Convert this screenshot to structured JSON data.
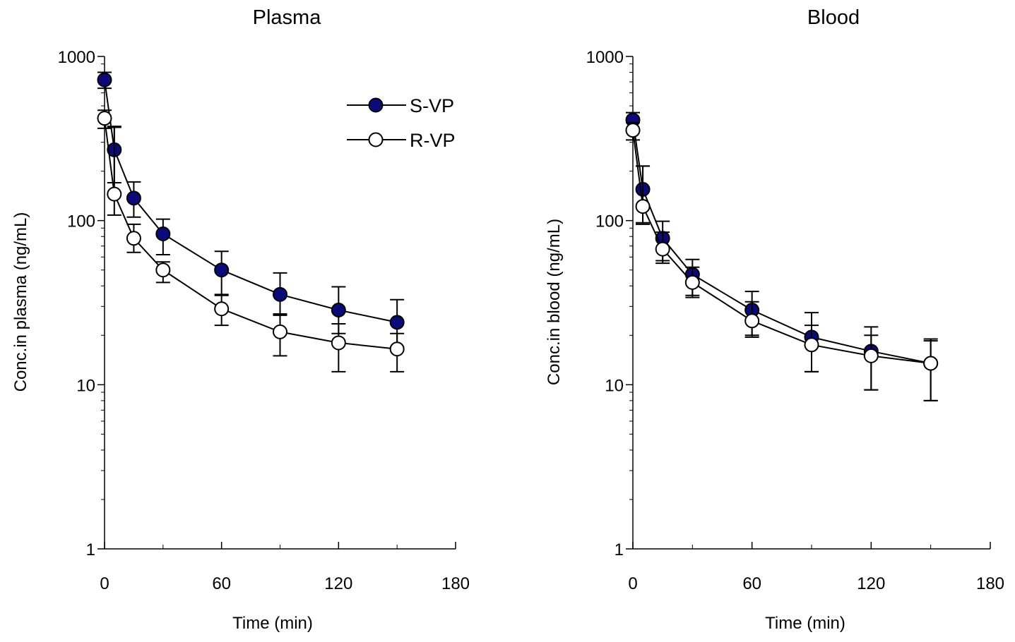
{
  "chart_data": [
    {
      "type": "line",
      "title": "Plasma",
      "xlabel": "Time (min)",
      "ylabel": "Conc.in plasma (ng/mL)",
      "xlim": [
        0,
        180
      ],
      "ylim": [
        1,
        1000
      ],
      "yscale": "log",
      "xticks": [
        "0",
        "60",
        "120",
        "180"
      ],
      "xtick_values": [
        0,
        60,
        120,
        180
      ],
      "yticks": [
        "1",
        "10",
        "100",
        "1000"
      ],
      "ytick_values": [
        1,
        10,
        100,
        1000
      ],
      "legend": {
        "placement": "top-right"
      },
      "x": [
        0,
        5,
        15,
        30,
        60,
        90,
        120,
        150
      ],
      "series": [
        {
          "name": "S-VP",
          "marker": "filled-circle",
          "color": "#0a0a78",
          "values": [
            720,
            270,
            137,
            83,
            50,
            35.5,
            28.5,
            24
          ],
          "err_upper": [
            800,
            375,
            172,
            102,
            65,
            48,
            39.5,
            33
          ],
          "err_lower": [
            640,
            170,
            105,
            62,
            35.5,
            26.5,
            20.5,
            17
          ]
        },
        {
          "name": "R-VP",
          "marker": "open-circle",
          "color": "#ffffff",
          "values": [
            420,
            145,
            78,
            50,
            29,
            21,
            18,
            16.5
          ],
          "err_upper": [
            470,
            370,
            95,
            56,
            35,
            27,
            23.5,
            20.5
          ],
          "err_lower": [
            365,
            108,
            64,
            42,
            23,
            15,
            12,
            12
          ]
        }
      ]
    },
    {
      "type": "line",
      "title": "Blood",
      "xlabel": "Time (min)",
      "ylabel": "Conc.in blood (ng/mL)",
      "xlim": [
        0,
        180
      ],
      "ylim": [
        1,
        1000
      ],
      "yscale": "log",
      "xticks": [
        "0",
        "60",
        "120",
        "180"
      ],
      "xtick_values": [
        0,
        60,
        120,
        180
      ],
      "yticks": [
        "1",
        "10",
        "100",
        "1000"
      ],
      "ytick_values": [
        1,
        10,
        100,
        1000
      ],
      "x": [
        0,
        5,
        15,
        30,
        60,
        90,
        120,
        150
      ],
      "series": [
        {
          "name": "S-VP",
          "marker": "filled-circle",
          "color": "#0a0a78",
          "values": [
            410,
            155,
            78,
            47,
            28.5,
            19.5,
            16,
            13.5
          ],
          "err_upper": [
            455,
            215,
            99,
            58,
            37,
            27.5,
            22.5,
            18.5
          ],
          "err_lower": [
            365,
            97,
            57,
            35,
            20,
            12,
            9.3,
            8
          ]
        },
        {
          "name": "R-VP",
          "marker": "open-circle",
          "color": "#ffffff",
          "values": [
            355,
            122,
            67,
            42,
            24.5,
            17.5,
            15,
            13.5
          ],
          "err_upper": [
            395,
            215,
            85,
            52,
            32,
            23,
            20,
            19
          ],
          "err_lower": [
            310,
            95,
            55,
            34,
            19.5,
            12,
            9.3,
            8
          ]
        }
      ]
    }
  ]
}
